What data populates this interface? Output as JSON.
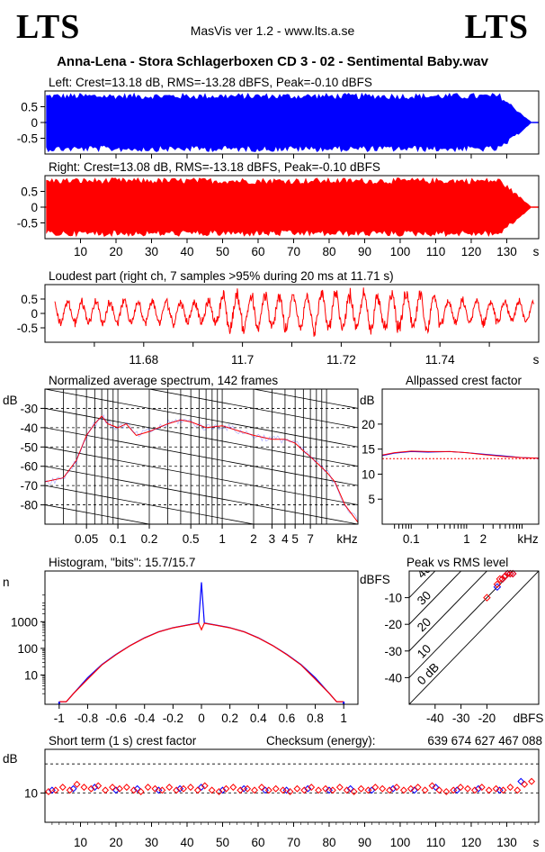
{
  "header": {
    "logo_left": "LTS",
    "logo_right": "LTS",
    "app_title": "MasVis ver 1.2 - www.lts.a.se",
    "file_title": "Anna-Lena - Stora Schlagerboxen CD 3 - 02 - Sentimental Baby.wav"
  },
  "colors": {
    "left": "#0000ff",
    "right": "#ff0000",
    "grid": "#000000"
  },
  "chart_data": [
    {
      "id": "left-waveform",
      "type": "area",
      "title": "Left: Crest=13.18 dB, RMS=-13.28 dBFS, Peak=-0.10 dBFS",
      "color": "#0000ff",
      "ylim": [
        -1,
        1
      ],
      "xlim": [
        0,
        139
      ],
      "yticks": [
        "0.5",
        "0",
        "-0.5"
      ],
      "yticks_values": [
        0.5,
        0,
        -0.5
      ],
      "x_end": 137,
      "crest_db": 13.18,
      "rms_dbfs": -13.28,
      "peak_dbfs": -0.1
    },
    {
      "id": "right-waveform",
      "type": "area",
      "title": "Right: Crest=13.08 dB, RMS=-13.18 dBFS, Peak=-0.10 dBFS",
      "color": "#ff0000",
      "ylim": [
        -1,
        1
      ],
      "xlim": [
        0,
        139
      ],
      "yticks": [
        "0.5",
        "0",
        "-0.5"
      ],
      "yticks_values": [
        0.5,
        0,
        -0.5
      ],
      "xticks": [
        "10",
        "20",
        "30",
        "40",
        "50",
        "60",
        "70",
        "80",
        "90",
        "100",
        "110",
        "120",
        "130"
      ],
      "xticks_values": [
        10,
        20,
        30,
        40,
        50,
        60,
        70,
        80,
        90,
        100,
        110,
        120,
        130
      ],
      "xunit": "s",
      "x_end": 137,
      "crest_db": 13.08,
      "rms_dbfs": -13.18,
      "peak_dbfs": -0.1
    },
    {
      "id": "loudest-part",
      "type": "line",
      "title": "Loudest part (right ch, 7 samples >95% during 20 ms at 11.71 s)",
      "color": "#ff0000",
      "xlim": [
        11.66,
        11.76
      ],
      "ylim": [
        -1,
        1
      ],
      "yticks": [
        "0.5",
        "0",
        "-0.5"
      ],
      "yticks_values": [
        0.5,
        0,
        -0.5
      ],
      "xticks": [
        "11.68",
        "11.7",
        "11.72",
        "11.74"
      ],
      "xticks_values": [
        11.68,
        11.7,
        11.72,
        11.74
      ],
      "xunit": "s"
    },
    {
      "id": "avg-spectrum",
      "type": "line",
      "title": "Normalized average spectrum, 142 frames",
      "ylabel": "dB",
      "color": "#ff0000",
      "xscale": "log",
      "xlim": [
        0.02,
        20
      ],
      "ylim": [
        -90,
        -20
      ],
      "yticks": [
        "-30",
        "-40",
        "-50",
        "-60",
        "-70",
        "-80"
      ],
      "yticks_values": [
        -30,
        -40,
        -50,
        -60,
        -70,
        -80
      ],
      "xticks": [
        "0.05",
        "0.1",
        "0.2",
        "0.5",
        "1",
        "2",
        "3",
        "4",
        "5",
        "7"
      ],
      "xticks_values": [
        0.05,
        0.1,
        0.2,
        0.5,
        1,
        2,
        3,
        4,
        5,
        7
      ],
      "xunit": "kHz",
      "frames": 142,
      "x": [
        0.02,
        0.03,
        0.04,
        0.05,
        0.06,
        0.07,
        0.08,
        0.1,
        0.12,
        0.15,
        0.2,
        0.3,
        0.4,
        0.5,
        0.7,
        1,
        1.5,
        2,
        3,
        4,
        5,
        6,
        7,
        8,
        10,
        12,
        15,
        20
      ],
      "values": [
        -68,
        -66,
        -57,
        -44,
        -38,
        -34,
        -38,
        -40,
        -38,
        -44,
        -42,
        -38,
        -36,
        -37,
        -40,
        -39,
        -42,
        -44,
        -46,
        -46,
        -48,
        -52,
        -55,
        -58,
        -63,
        -68,
        -80,
        -89
      ]
    },
    {
      "id": "allpassed-crest",
      "type": "line",
      "title": "Allpassed crest factor",
      "ylabel": "dB",
      "xscale": "log",
      "xlim": [
        0.03,
        20
      ],
      "ylim": [
        0,
        27
      ],
      "yticks": [
        "20",
        "15",
        "10",
        "5"
      ],
      "yticks_values": [
        20,
        15,
        10,
        5
      ],
      "xticks": [
        "0.1",
        "1",
        "2"
      ],
      "xticks_values": [
        0.1,
        1,
        2
      ],
      "xunit": "kHz",
      "reference_db": 13.1,
      "x": [
        0.03,
        0.05,
        0.1,
        0.2,
        0.5,
        1,
        2,
        5,
        10,
        20
      ],
      "series": [
        {
          "name": "left",
          "color": "#0000ff",
          "values": [
            13.7,
            14.2,
            14.5,
            14.4,
            14.5,
            14.3,
            14.0,
            13.6,
            13.3,
            13.2
          ]
        },
        {
          "name": "right",
          "color": "#ff0000",
          "values": [
            13.8,
            14.3,
            14.6,
            14.5,
            14.5,
            14.3,
            13.9,
            13.5,
            13.3,
            13.2
          ]
        }
      ]
    },
    {
      "id": "histogram",
      "type": "line",
      "title": "Histogram, \"bits\": 15.7/15.7",
      "ylabel": "n",
      "yscale": "log",
      "xlim": [
        -1.1,
        1.1
      ],
      "ylim": [
        0.8,
        80000
      ],
      "yticks": [
        "1000",
        "100",
        "10"
      ],
      "yticks_values": [
        1000,
        100,
        10
      ],
      "xticks": [
        "-1",
        "-0.8",
        "-0.6",
        "-0.4",
        "-0.2",
        "0",
        "0.2",
        "0.4",
        "0.6",
        "0.8",
        "1"
      ],
      "xticks_values": [
        -1,
        -0.8,
        -0.6,
        -0.4,
        -0.2,
        0,
        0.2,
        0.4,
        0.6,
        0.8,
        1
      ],
      "bits_left": 15.7,
      "bits_right": 15.7,
      "x": [
        -1.0,
        -0.95,
        -0.9,
        -0.8,
        -0.7,
        -0.6,
        -0.5,
        -0.4,
        -0.3,
        -0.2,
        -0.1,
        -0.02,
        0.0,
        0.02,
        0.1,
        0.2,
        0.3,
        0.4,
        0.5,
        0.6,
        0.7,
        0.8,
        0.9,
        0.95,
        1.0
      ],
      "series": [
        {
          "name": "left",
          "color": "#0000ff",
          "values": [
            1,
            1,
            2,
            8,
            25,
            60,
            130,
            250,
            420,
            600,
            750,
            900,
            30000,
            900,
            750,
            600,
            420,
            250,
            130,
            60,
            25,
            8,
            2,
            1,
            1
          ]
        },
        {
          "name": "right",
          "color": "#ff0000",
          "values": [
            1,
            1,
            2,
            7,
            24,
            58,
            128,
            245,
            415,
            590,
            740,
            880,
            500,
            880,
            740,
            590,
            415,
            245,
            128,
            58,
            24,
            7,
            2,
            1,
            1
          ]
        }
      ]
    },
    {
      "id": "peak-vs-rms",
      "type": "scatter",
      "title": "Peak vs RMS level",
      "ylabel": "dBFS",
      "xlabel": "dBFS",
      "xlim": [
        -50,
        0
      ],
      "ylim": [
        -50,
        0
      ],
      "xticks": [
        "-40",
        "-30",
        "-20"
      ],
      "xticks_values": [
        -40,
        -30,
        -20
      ],
      "yticks": [
        "-10",
        "-20",
        "-30",
        "-40"
      ],
      "yticks_values": [
        -10,
        -20,
        -30,
        -40
      ],
      "diagonal_labels": [
        "40",
        "30",
        "20",
        "10",
        "0 dB"
      ],
      "diagonal_values": [
        40,
        30,
        20,
        10,
        0
      ],
      "series": [
        {
          "name": "left",
          "color": "#0000ff",
          "x": [
            -16,
            -14,
            -13,
            -12,
            -11,
            -10
          ],
          "y": [
            -6,
            -3,
            -2,
            -1,
            -1,
            -1
          ]
        },
        {
          "name": "right",
          "color": "#ff0000",
          "x": [
            -20,
            -16,
            -15,
            -14,
            -13,
            -12,
            -11,
            -10
          ],
          "y": [
            -10,
            -5,
            -3,
            -3,
            -2,
            -1,
            -1,
            -1
          ]
        }
      ]
    },
    {
      "id": "short-term-crest",
      "type": "scatter",
      "title": "Short term (1 s) crest factor",
      "ylabel": "dB",
      "xlim": [
        0,
        139
      ],
      "ylim": [
        0,
        25
      ],
      "yticks": [
        "10"
      ],
      "yticks_values": [
        10
      ],
      "xticks": [
        "10",
        "20",
        "30",
        "40",
        "50",
        "60",
        "70",
        "80",
        "90",
        "100",
        "110",
        "120",
        "130"
      ],
      "xticks_values": [
        10,
        20,
        30,
        40,
        50,
        60,
        70,
        80,
        90,
        100,
        110,
        120,
        130
      ],
      "xunit": "s",
      "checksum_label": "Checksum (energy):",
      "checksum_value": "639 674 627 467 088",
      "series": [
        {
          "name": "left",
          "color": "#0000ff",
          "x": [
            2,
            8,
            14,
            20,
            26,
            32,
            38,
            44,
            50,
            56,
            62,
            68,
            74,
            80,
            86,
            92,
            98,
            104,
            110,
            116,
            122,
            128,
            134
          ],
          "values": [
            11,
            11.5,
            12,
            11,
            11.5,
            11,
            11.5,
            12,
            11,
            11.5,
            11,
            11,
            11.5,
            11,
            11.5,
            11,
            11.5,
            11,
            12,
            11,
            11.5,
            11,
            14
          ]
        },
        {
          "name": "right",
          "color": "#ff0000",
          "x": [
            1,
            3,
            5,
            7,
            9,
            11,
            13,
            15,
            17,
            19,
            21,
            23,
            25,
            27,
            29,
            31,
            33,
            35,
            37,
            39,
            41,
            43,
            45,
            47,
            49,
            51,
            53,
            55,
            57,
            59,
            61,
            63,
            65,
            67,
            69,
            71,
            73,
            75,
            77,
            79,
            81,
            83,
            85,
            87,
            89,
            91,
            93,
            95,
            97,
            99,
            101,
            103,
            105,
            107,
            109,
            111,
            113,
            115,
            117,
            119,
            121,
            123,
            125,
            127,
            129,
            131,
            133,
            135,
            137
          ],
          "values": [
            10.5,
            11,
            12,
            11,
            13,
            12,
            11.5,
            12.5,
            11,
            12,
            11.5,
            12,
            11,
            10.5,
            12,
            11.5,
            11,
            12,
            11,
            11.5,
            12,
            11,
            12.5,
            11,
            10.5,
            11.5,
            12,
            11,
            11.5,
            11,
            12,
            11,
            11.5,
            11,
            10.5,
            11.5,
            11,
            12,
            11,
            11.5,
            11,
            12,
            11,
            10.5,
            11.5,
            11,
            12,
            11.5,
            11,
            12,
            11,
            11.5,
            12,
            11,
            12.5,
            11,
            10.5,
            11,
            12,
            11.5,
            11,
            12,
            11,
            11.5,
            11,
            12,
            11,
            13,
            14
          ]
        }
      ]
    }
  ]
}
